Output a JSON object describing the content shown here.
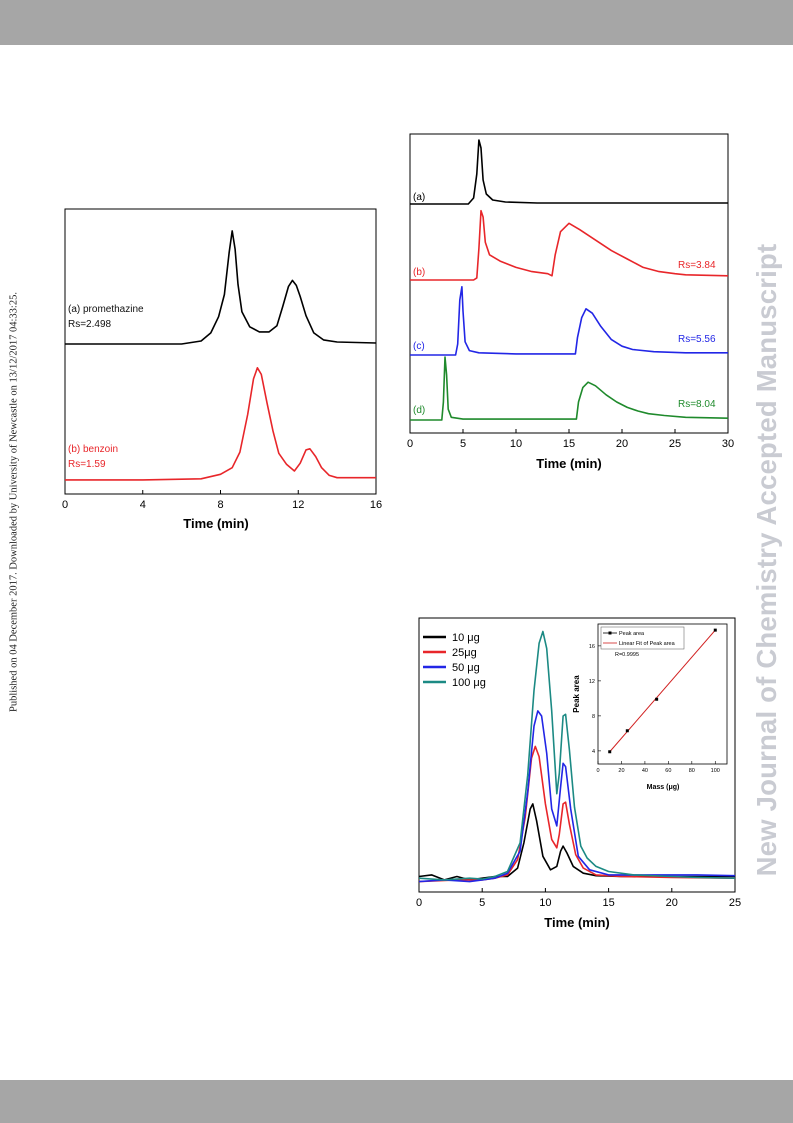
{
  "side_note": "Published on 04 December 2017. Downloaded by University of Newcastle on 13/12/2017 04:33:25.",
  "watermark": "New Journal of Chemistry Accepted Manuscript",
  "chart_data": [
    {
      "type": "line",
      "xlabel": "Time (min)",
      "xlim": [
        0,
        16
      ],
      "xticks": [
        "0",
        "4",
        "8",
        "12",
        "16"
      ],
      "grid": false,
      "series": [
        {
          "name": "(a) promethazine",
          "rs_label": "Rs=2.498",
          "color": "#000000",
          "points": [
            [
              0,
              0.1
            ],
            [
              3,
              0.1
            ],
            [
              6,
              0.1
            ],
            [
              7,
              0.4
            ],
            [
              7.5,
              1.2
            ],
            [
              7.9,
              2.8
            ],
            [
              8.2,
              5
            ],
            [
              8.45,
              9.2
            ],
            [
              8.6,
              11.3
            ],
            [
              8.75,
              9.5
            ],
            [
              8.9,
              6
            ],
            [
              9.1,
              3.3
            ],
            [
              9.5,
              1.8
            ],
            [
              10,
              1.3
            ],
            [
              10.5,
              1.3
            ],
            [
              10.9,
              1.9
            ],
            [
              11.2,
              3.8
            ],
            [
              11.5,
              5.8
            ],
            [
              11.7,
              6.4
            ],
            [
              11.9,
              5.9
            ],
            [
              12.1,
              4.8
            ],
            [
              12.4,
              2.9
            ],
            [
              12.8,
              1.2
            ],
            [
              13.3,
              0.5
            ],
            [
              14,
              0.3
            ],
            [
              15,
              0.25
            ],
            [
              16,
              0.2
            ]
          ]
        },
        {
          "name": "(b) benzoin",
          "rs_label": "Rs=1.59",
          "color": "#e8262a",
          "points": [
            [
              0,
              0.1
            ],
            [
              4,
              0.1
            ],
            [
              7,
              0.2
            ],
            [
              8,
              0.6
            ],
            [
              8.6,
              1.2
            ],
            [
              9,
              2.6
            ],
            [
              9.4,
              6
            ],
            [
              9.7,
              9.2
            ],
            [
              9.9,
              10.2
            ],
            [
              10.1,
              9.6
            ],
            [
              10.4,
              7
            ],
            [
              10.7,
              4.5
            ],
            [
              11,
              2.5
            ],
            [
              11.4,
              1.5
            ],
            [
              11.8,
              0.9
            ],
            [
              12.1,
              1.6
            ],
            [
              12.4,
              2.8
            ],
            [
              12.6,
              2.9
            ],
            [
              12.9,
              2.2
            ],
            [
              13.2,
              1.2
            ],
            [
              13.6,
              0.5
            ],
            [
              14,
              0.3
            ],
            [
              15,
              0.3
            ],
            [
              16,
              0.3
            ]
          ]
        }
      ]
    },
    {
      "type": "line",
      "xlabel": "Time (min)",
      "xlim": [
        0,
        30
      ],
      "xticks": [
        "0",
        "5",
        "10",
        "15",
        "20",
        "25",
        "30"
      ],
      "grid": false,
      "series": [
        {
          "name": "(a)",
          "rs_label": "",
          "color": "#000000",
          "points": [
            [
              0,
              0
            ],
            [
              5.5,
              0
            ],
            [
              6,
              0.3
            ],
            [
              6.3,
              1.5
            ],
            [
              6.5,
              3.2
            ],
            [
              6.7,
              2.8
            ],
            [
              6.9,
              1.2
            ],
            [
              7.2,
              0.5
            ],
            [
              7.8,
              0.2
            ],
            [
              9,
              0.1
            ],
            [
              12,
              0.05
            ],
            [
              30,
              0.05
            ]
          ]
        },
        {
          "name": "(b)",
          "rs_label": "Rs=3.84",
          "color": "#e8262a",
          "points": [
            [
              0,
              0
            ],
            [
              6,
              0
            ],
            [
              6.3,
              0.1
            ],
            [
              6.5,
              1.5
            ],
            [
              6.7,
              3.3
            ],
            [
              6.9,
              3
            ],
            [
              7.1,
              1.8
            ],
            [
              7.5,
              1.2
            ],
            [
              8.5,
              0.9
            ],
            [
              10,
              0.6
            ],
            [
              11.5,
              0.4
            ],
            [
              13,
              0.3
            ],
            [
              13.4,
              0.2
            ],
            [
              13.7,
              1.2
            ],
            [
              14.2,
              2.3
            ],
            [
              15,
              2.7
            ],
            [
              16,
              2.4
            ],
            [
              17.5,
              1.9
            ],
            [
              19,
              1.4
            ],
            [
              20.5,
              1
            ],
            [
              22,
              0.6
            ],
            [
              23.5,
              0.4
            ],
            [
              25,
              0.3
            ],
            [
              26,
              0.25
            ],
            [
              30,
              0.2
            ]
          ]
        },
        {
          "name": "(c)",
          "rs_label": "Rs=5.56",
          "color": "#2226e6",
          "points": [
            [
              0,
              0
            ],
            [
              4.3,
              0
            ],
            [
              4.5,
              0.5
            ],
            [
              4.7,
              2.5
            ],
            [
              4.9,
              3.1
            ],
            [
              5,
              2
            ],
            [
              5.2,
              0.6
            ],
            [
              5.6,
              0.2
            ],
            [
              6.5,
              0.1
            ],
            [
              10,
              0.05
            ],
            [
              15,
              0.05
            ],
            [
              15.6,
              0.05
            ],
            [
              15.8,
              0.8
            ],
            [
              16.2,
              1.7
            ],
            [
              16.6,
              2.1
            ],
            [
              17.2,
              1.9
            ],
            [
              18,
              1.3
            ],
            [
              19,
              0.7
            ],
            [
              20,
              0.4
            ],
            [
              21,
              0.25
            ],
            [
              23,
              0.15
            ],
            [
              26,
              0.1
            ],
            [
              30,
              0.1
            ]
          ]
        },
        {
          "name": "(d)",
          "rs_label": "Rs=8.04",
          "color": "#1f8a2c",
          "points": [
            [
              0,
              0
            ],
            [
              3,
              0
            ],
            [
              3.15,
              1
            ],
            [
              3.3,
              3.5
            ],
            [
              3.45,
              2.5
            ],
            [
              3.6,
              0.6
            ],
            [
              3.9,
              0.15
            ],
            [
              5,
              0.05
            ],
            [
              10,
              0.05
            ],
            [
              15,
              0.05
            ],
            [
              15.7,
              0.05
            ],
            [
              15.9,
              1
            ],
            [
              16.3,
              1.8
            ],
            [
              16.8,
              2.1
            ],
            [
              17.5,
              1.9
            ],
            [
              18.5,
              1.4
            ],
            [
              19.5,
              1
            ],
            [
              20.5,
              0.7
            ],
            [
              21.5,
              0.5
            ],
            [
              22.5,
              0.35
            ],
            [
              24,
              0.25
            ],
            [
              26,
              0.15
            ],
            [
              30,
              0.1
            ]
          ]
        }
      ]
    },
    {
      "type": "line",
      "xlabel": "Time (min)",
      "xlim": [
        0,
        25
      ],
      "xticks": [
        "0",
        "5",
        "10",
        "15",
        "20",
        "25"
      ],
      "grid": false,
      "legend": "top-left",
      "series": [
        {
          "name": "10 μg",
          "color": "#000000",
          "points": [
            [
              0,
              0.5
            ],
            [
              1,
              0.6
            ],
            [
              2,
              0.3
            ],
            [
              3,
              0.5
            ],
            [
              4,
              0.3
            ],
            [
              5,
              0.4
            ],
            [
              6,
              0.5
            ],
            [
              7,
              0.5
            ],
            [
              7.8,
              1
            ],
            [
              8.3,
              2.5
            ],
            [
              8.8,
              4.5
            ],
            [
              9,
              4.8
            ],
            [
              9.3,
              3.8
            ],
            [
              9.8,
              1.7
            ],
            [
              10.4,
              0.9
            ],
            [
              10.9,
              1.1
            ],
            [
              11.2,
              2
            ],
            [
              11.4,
              2.3
            ],
            [
              11.7,
              1.9
            ],
            [
              12.2,
              1.1
            ],
            [
              13,
              0.7
            ],
            [
              14,
              0.55
            ],
            [
              16,
              0.5
            ],
            [
              20,
              0.5
            ],
            [
              25,
              0.5
            ]
          ]
        },
        {
          "name": "25μg",
          "color": "#e8262a",
          "points": [
            [
              0,
              0.2
            ],
            [
              3,
              0.3
            ],
            [
              5,
              0.3
            ],
            [
              6,
              0.4
            ],
            [
              7,
              0.6
            ],
            [
              7.8,
              1.5
            ],
            [
              8.4,
              4
            ],
            [
              8.9,
              7.5
            ],
            [
              9.2,
              8.2
            ],
            [
              9.5,
              7.6
            ],
            [
              10,
              4.8
            ],
            [
              10.5,
              2.7
            ],
            [
              10.9,
              2.2
            ],
            [
              11.1,
              3
            ],
            [
              11.4,
              4.8
            ],
            [
              11.6,
              4.9
            ],
            [
              11.9,
              3.6
            ],
            [
              12.4,
              1.8
            ],
            [
              13,
              1
            ],
            [
              14,
              0.6
            ],
            [
              16,
              0.5
            ],
            [
              20,
              0.45
            ],
            [
              25,
              0.4
            ]
          ]
        },
        {
          "name": "50 μg",
          "color": "#2226e6",
          "points": [
            [
              0,
              0.2
            ],
            [
              2,
              0.3
            ],
            [
              4,
              0.2
            ],
            [
              5,
              0.3
            ],
            [
              6,
              0.4
            ],
            [
              7,
              0.7
            ],
            [
              8,
              2
            ],
            [
              8.6,
              5.5
            ],
            [
              9.1,
              9.4
            ],
            [
              9.4,
              10.3
            ],
            [
              9.7,
              10
            ],
            [
              10.1,
              7.8
            ],
            [
              10.5,
              4.5
            ],
            [
              10.9,
              3.5
            ],
            [
              11.2,
              5.8
            ],
            [
              11.4,
              7.2
            ],
            [
              11.6,
              7
            ],
            [
              12,
              4.5
            ],
            [
              12.6,
              1.7
            ],
            [
              13.5,
              0.9
            ],
            [
              15,
              0.6
            ],
            [
              18,
              0.6
            ],
            [
              20,
              0.6
            ],
            [
              22,
              0.6
            ],
            [
              25,
              0.55
            ]
          ]
        },
        {
          "name": "100 μg",
          "color": "#1c8a84",
          "points": [
            [
              0,
              0.4
            ],
            [
              2,
              0.3
            ],
            [
              4,
              0.4
            ],
            [
              5,
              0.35
            ],
            [
              6,
              0.5
            ],
            [
              7,
              0.8
            ],
            [
              8,
              2.5
            ],
            [
              8.6,
              6.5
            ],
            [
              9.1,
              11.5
            ],
            [
              9.5,
              14.3
            ],
            [
              9.8,
              15
            ],
            [
              10.1,
              14
            ],
            [
              10.5,
              10.3
            ],
            [
              10.9,
              5.4
            ],
            [
              11.1,
              6.6
            ],
            [
              11.4,
              10
            ],
            [
              11.6,
              10.1
            ],
            [
              11.9,
              8
            ],
            [
              12.3,
              4.6
            ],
            [
              12.8,
              2.3
            ],
            [
              13.3,
              1.6
            ],
            [
              14,
              1.1
            ],
            [
              15,
              0.8
            ],
            [
              17,
              0.6
            ],
            [
              20,
              0.5
            ],
            [
              22,
              0.45
            ],
            [
              25,
              0.4
            ]
          ]
        }
      ],
      "inset": {
        "type": "scatter",
        "xlabel": "Mass (μg)",
        "ylabel": "Peak area",
        "xlim": [
          0,
          110
        ],
        "ylim": [
          2.5,
          18.5
        ],
        "xticks": [
          "0",
          "20",
          "40",
          "60",
          "80",
          "100"
        ],
        "yticks": [
          "4",
          "8",
          "12",
          "16"
        ],
        "legend": [
          "Peak area",
          "Linear Fit of Peak area"
        ],
        "annotation": "R=0.9995",
        "points": [
          [
            10,
            3.9
          ],
          [
            25,
            6.3
          ],
          [
            50,
            9.9
          ],
          [
            100,
            17.8
          ]
        ],
        "fit": [
          [
            10,
            3.9
          ],
          [
            100,
            17.8
          ]
        ],
        "colors": {
          "points": "#000000",
          "fit": "#d12020"
        }
      }
    }
  ]
}
